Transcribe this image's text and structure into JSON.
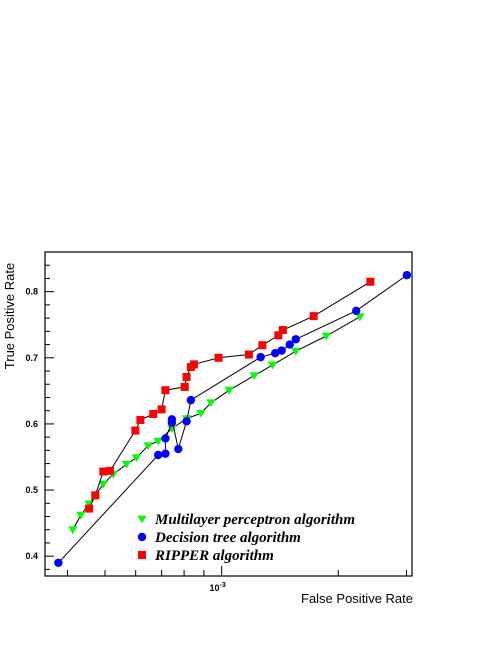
{
  "chart_data": {
    "type": "line",
    "title": "",
    "xlabel": "False Positive Rate",
    "ylabel": "True Positive Rate",
    "xscale": "log",
    "xlim": [
      0.00035,
      0.0031
    ],
    "ylim": [
      0.37,
      0.86
    ],
    "y_ticks": [
      0.4,
      0.5,
      0.6,
      0.7,
      0.8
    ],
    "y_tick_labels": [
      "0.4",
      "0.5",
      "0.6",
      "0.7",
      "0.8"
    ],
    "x_tick_labels": [
      {
        "value": 0.001,
        "base": "10",
        "exp": "-3"
      }
    ],
    "grid": false,
    "legend": "bottom-right",
    "series": [
      {
        "name": "Multilayer perceptron algorithm",
        "marker": "triangle-down",
        "color": "#00ff00",
        "x": [
          0.000413,
          0.000433,
          0.000455,
          0.000495,
          0.000525,
          0.000568,
          0.000603,
          0.000646,
          0.000686,
          0.000744,
          0.000812,
          0.000884,
          0.000938,
          0.001046,
          0.001214,
          0.001353,
          0.001554,
          0.001863,
          0.002275
        ],
        "y": [
          0.44,
          0.462,
          0.479,
          0.509,
          0.524,
          0.539,
          0.549,
          0.567,
          0.574,
          0.593,
          0.608,
          0.616,
          0.632,
          0.651,
          0.673,
          0.689,
          0.71,
          0.733,
          0.762
        ]
      },
      {
        "name": "Decision tree algorithm",
        "marker": "circle",
        "color": "#0000ff",
        "x": [
          0.000379,
          0.000686,
          0.000716,
          0.000716,
          0.000744,
          0.000744,
          0.000773,
          0.000812,
          0.000833,
          0.001261,
          0.001375,
          0.001429,
          0.001499,
          0.001554,
          0.002225,
          0.003008
        ],
        "y": [
          0.39,
          0.553,
          0.555,
          0.578,
          0.602,
          0.607,
          0.562,
          0.604,
          0.636,
          0.701,
          0.707,
          0.711,
          0.72,
          0.728,
          0.771,
          0.825
        ]
      },
      {
        "name": "RIPPER algorithm",
        "marker": "square",
        "color": "#ff0000",
        "x": [
          0.000455,
          0.000472,
          0.000495,
          0.000515,
          0.000599,
          0.000617,
          0.000666,
          0.0007,
          0.000716,
          0.000803,
          0.000812,
          0.000833,
          0.000848,
          0.000982,
          0.001176,
          0.001274,
          0.001401,
          0.001439,
          0.001728,
          0.002421
        ],
        "y": [
          0.472,
          0.492,
          0.528,
          0.529,
          0.59,
          0.606,
          0.615,
          0.622,
          0.651,
          0.656,
          0.671,
          0.686,
          0.69,
          0.7,
          0.705,
          0.719,
          0.734,
          0.742,
          0.763,
          0.815
        ]
      }
    ]
  }
}
